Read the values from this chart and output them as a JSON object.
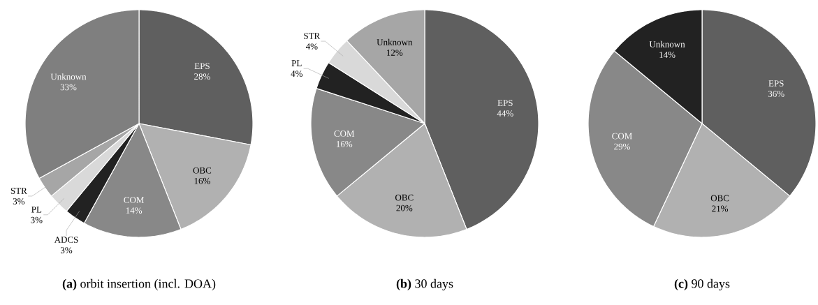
{
  "chart_data": [
    {
      "type": "pie",
      "title": "**(a)** orbit insertion (incl. DOA)",
      "categories": [
        "EPS",
        "OBC",
        "COM",
        "ADCS",
        "PL",
        "STR",
        "Unknown"
      ],
      "values": [
        28,
        16,
        14,
        3,
        3,
        3,
        33
      ],
      "colors": [
        "#5f5f5f",
        "#b1b1b1",
        "#888888",
        "#222222",
        "#d9d9d9",
        "#a6a6a6",
        "#7f7f7f"
      ],
      "value_labels": [
        "28%",
        "16%",
        "14%",
        "3%",
        "3%",
        "3%",
        "33%"
      ]
    },
    {
      "type": "pie",
      "title": "**(b)** 30 days",
      "categories": [
        "EPS",
        "OBC",
        "COM",
        "PL",
        "STR",
        "Unknown"
      ],
      "values": [
        44,
        20,
        16,
        4,
        4,
        12
      ],
      "colors": [
        "#5f5f5f",
        "#b1b1b1",
        "#888888",
        "#222222",
        "#d9d9d9",
        "#a6a6a6"
      ],
      "value_labels": [
        "44%",
        "20%",
        "16%",
        "4%",
        "4%",
        "12%"
      ]
    },
    {
      "type": "pie",
      "title": "**(c)** 90 days",
      "categories": [
        "EPS",
        "OBC",
        "COM",
        "Unknown"
      ],
      "values": [
        36,
        21,
        29,
        14
      ],
      "colors": [
        "#5f5f5f",
        "#b1b1b1",
        "#888888",
        "#222222"
      ],
      "value_labels": [
        "36%",
        "21%",
        "29%",
        "14%"
      ]
    }
  ]
}
